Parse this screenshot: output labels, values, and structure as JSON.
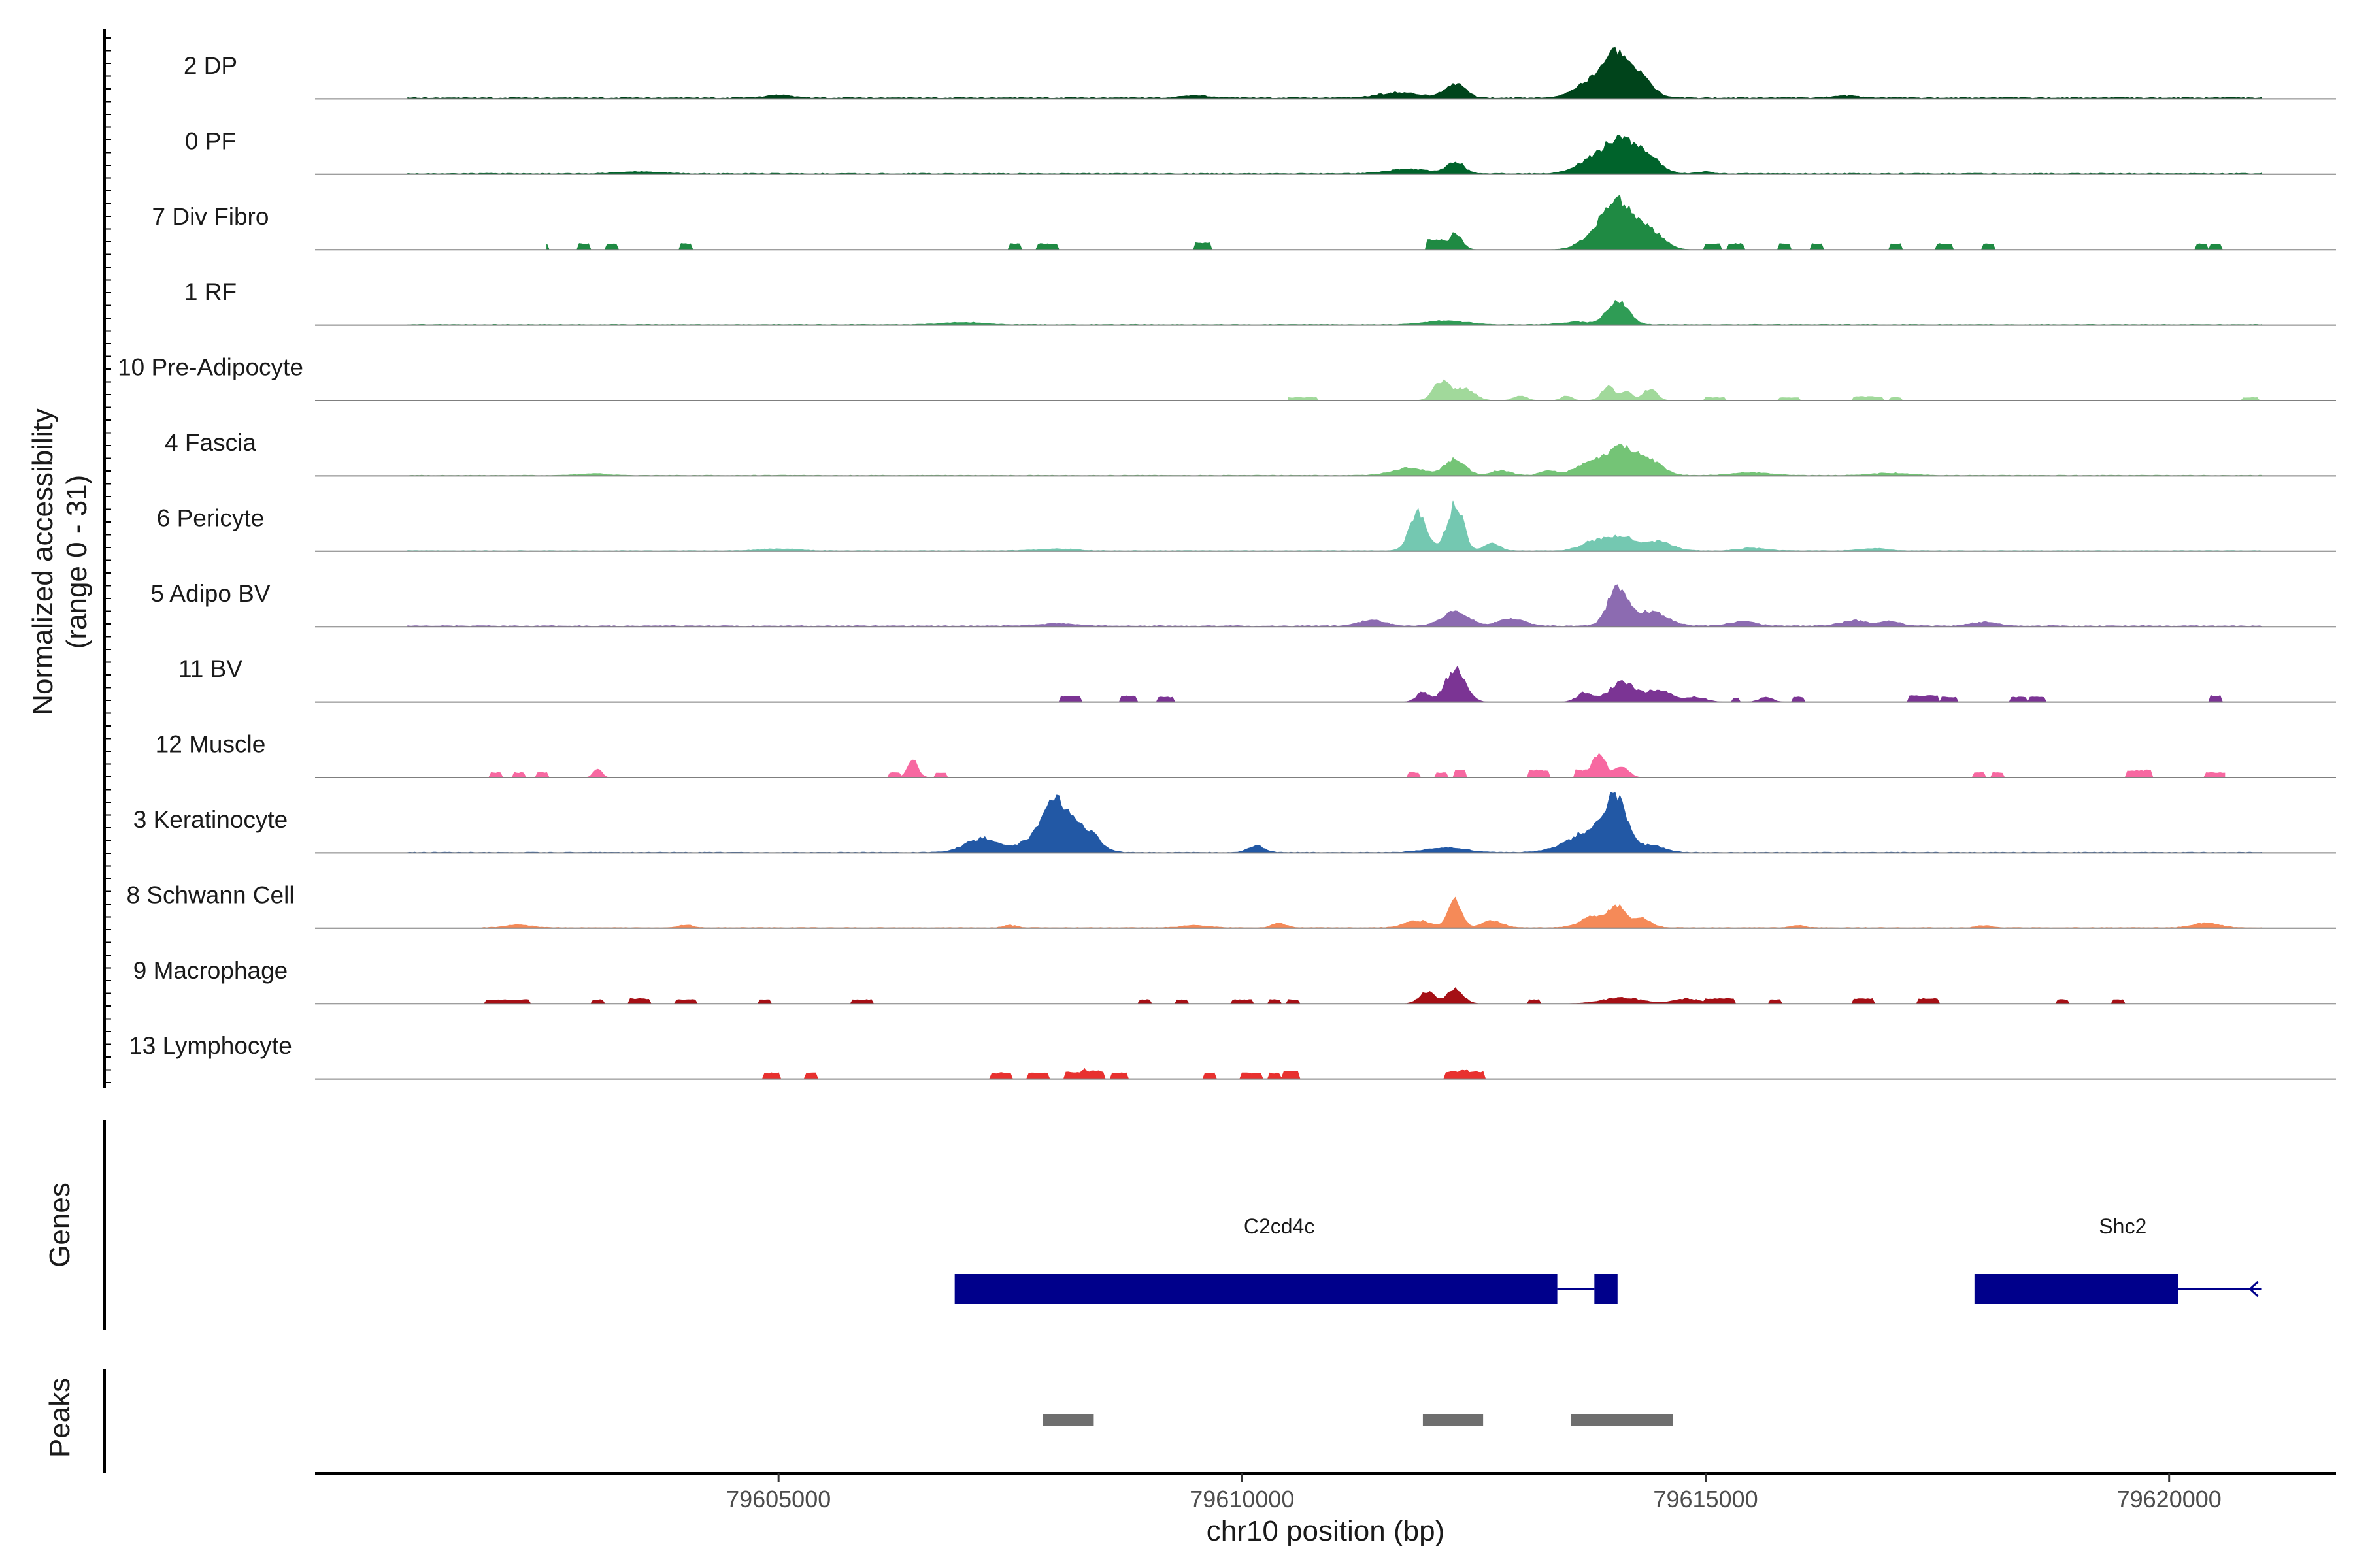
{
  "chart_data": {
    "type": "area",
    "chromosome": "chr10",
    "xlim": [
      79600000,
      79621800
    ],
    "ylabel": "Normalized accessibility\n(range 0 - 31)",
    "ylim": [
      0,
      31
    ],
    "xlabel": "chr10 position (bp)",
    "x_ticks": [
      {
        "value": 79605000,
        "label": "79605000"
      },
      {
        "value": 79610000,
        "label": "79610000"
      },
      {
        "value": 79615000,
        "label": "79615000"
      },
      {
        "value": 79620000,
        "label": "79620000"
      }
    ],
    "tracks": [
      {
        "name": "2 DP",
        "color": "#00441b",
        "baseline": 0.2,
        "x_start": 79601000,
        "x_end": 79621000,
        "peaks": [
          [
            79605000,
            0.6,
            0.2
          ],
          [
            79609500,
            0.5,
            0.2
          ],
          [
            79612300,
            3,
            0.16
          ],
          [
            79611700,
            1.2,
            0.3
          ],
          [
            79613800,
            4,
            0.25
          ],
          [
            79614050,
            8,
            0.18
          ],
          [
            79614300,
            4,
            0.18
          ],
          [
            79616500,
            0.5,
            0.2
          ]
        ]
      },
      {
        "name": "0 PF",
        "color": "#00632b",
        "baseline": 0.15,
        "x_start": 79601000,
        "x_end": 79621000,
        "peaks": [
          [
            79603500,
            0.4,
            0.3
          ],
          [
            79611800,
            1,
            0.3
          ],
          [
            79612300,
            2.5,
            0.13
          ],
          [
            79613800,
            3,
            0.25
          ],
          [
            79614100,
            7,
            0.22
          ],
          [
            79614400,
            3,
            0.18
          ],
          [
            79615000,
            0.4,
            0.1
          ]
        ]
      },
      {
        "name": "7 Div Fibro",
        "color": "#1f8a43",
        "baseline": 0,
        "x_start": 79602500,
        "x_end": 79620900,
        "blocks": [
          [
            79602300,
            79602500,
            1.2
          ],
          [
            79602850,
            79602950,
            1.2
          ],
          [
            79603150,
            79603250,
            1.2
          ],
          [
            79603950,
            79604050,
            1.2
          ],
          [
            79607500,
            79607600,
            1.2
          ],
          [
            79607800,
            79608000,
            1.2
          ],
          [
            79609500,
            79609650,
            1.4
          ],
          [
            79612000,
            79612200,
            2
          ]
        ],
        "peaks": [
          [
            79612300,
            3.5,
            0.1
          ],
          [
            79613900,
            5,
            0.25
          ],
          [
            79614100,
            7,
            0.2
          ],
          [
            79614400,
            4,
            0.2
          ]
        ],
        "blocks2": [
          [
            79615000,
            79615150,
            1.2
          ],
          [
            79615250,
            79615400,
            1.2
          ],
          [
            79615800,
            79615900,
            1.2
          ],
          [
            79616150,
            79616250,
            1.2
          ],
          [
            79617000,
            79617100,
            1.2
          ],
          [
            79617500,
            79617650,
            1.2
          ],
          [
            79618000,
            79618100,
            1.2
          ],
          [
            79620300,
            79620400,
            1.2
          ],
          [
            79620450,
            79620550,
            1.2
          ]
        ]
      },
      {
        "name": "1 RF",
        "color": "#2f9c55",
        "baseline": 0.1,
        "x_start": 79601000,
        "x_end": 79621000,
        "peaks": [
          [
            79607000,
            0.5,
            0.3
          ],
          [
            79612200,
            0.8,
            0.3
          ],
          [
            79614050,
            5,
            0.16
          ],
          [
            79613600,
            0.6,
            0.2
          ]
        ]
      },
      {
        "name": "10 Pre-Adipocyte",
        "color": "#a1d99b",
        "baseline": 0,
        "x_start": 79610500,
        "x_end": 79621000,
        "blocks": [
          [
            79610500,
            79610800,
            0.6
          ],
          [
            79615000,
            79615200,
            0.6
          ],
          [
            79615800,
            79616000,
            0.6
          ],
          [
            79616600,
            79616900,
            0.8
          ],
          [
            79617000,
            79617100,
            0.6
          ],
          [
            79620800,
            79620950,
            0.6
          ]
        ],
        "peaks": [
          [
            79612150,
            4,
            0.12
          ],
          [
            79612400,
            2.5,
            0.15
          ],
          [
            79613000,
            1,
            0.1
          ],
          [
            79613500,
            1,
            0.08
          ],
          [
            79613950,
            3,
            0.1
          ],
          [
            79614150,
            2,
            0.08
          ],
          [
            79614400,
            2.5,
            0.1
          ]
        ]
      },
      {
        "name": "4 Fascia",
        "color": "#74c476",
        "baseline": 0.1,
        "x_start": 79601000,
        "x_end": 79621000,
        "peaks": [
          [
            79603000,
            0.4,
            0.2
          ],
          [
            79611800,
            1.5,
            0.25
          ],
          [
            79612300,
            3.5,
            0.15
          ],
          [
            79612800,
            1,
            0.15
          ],
          [
            79613300,
            1,
            0.12
          ],
          [
            79613800,
            3,
            0.25
          ],
          [
            79614100,
            5,
            0.2
          ],
          [
            79614400,
            3,
            0.2
          ],
          [
            79615500,
            0.6,
            0.3
          ],
          [
            79617000,
            0.5,
            0.3
          ]
        ]
      },
      {
        "name": "6 Pericyte",
        "color": "#74c8b1",
        "baseline": 0.1,
        "x_start": 79601000,
        "x_end": 79621000,
        "peaks": [
          [
            79605000,
            0.4,
            0.3
          ],
          [
            79608000,
            0.4,
            0.3
          ],
          [
            79611900,
            8,
            0.13
          ],
          [
            79612300,
            10,
            0.12
          ],
          [
            79612700,
            1.5,
            0.12
          ],
          [
            79613800,
            2,
            0.2
          ],
          [
            79614100,
            3,
            0.2
          ],
          [
            79614500,
            2,
            0.2
          ],
          [
            79615500,
            0.6,
            0.2
          ],
          [
            79616800,
            0.5,
            0.2
          ]
        ]
      },
      {
        "name": "5 Adipo BV",
        "color": "#8c6bb1",
        "baseline": 0.15,
        "x_start": 79601000,
        "x_end": 79621000,
        "peaks": [
          [
            79608000,
            0.5,
            0.3
          ],
          [
            79611400,
            1.2,
            0.2
          ],
          [
            79612300,
            3,
            0.2
          ],
          [
            79612900,
            1.5,
            0.2
          ],
          [
            79614050,
            8,
            0.15
          ],
          [
            79614400,
            3,
            0.25
          ],
          [
            79615400,
            1,
            0.2
          ],
          [
            79616600,
            1.2,
            0.2
          ],
          [
            79617000,
            1,
            0.15
          ],
          [
            79618000,
            0.8,
            0.2
          ]
        ]
      },
      {
        "name": "11 BV",
        "color": "#7b3494",
        "baseline": 0,
        "x_start": 79608000,
        "x_end": 79620600,
        "blocks": [
          [
            79608050,
            79608250,
            1.2
          ],
          [
            79608700,
            79608850,
            1.2
          ],
          [
            79609100,
            79609250,
            1
          ],
          [
            79615300,
            79615350,
            0.8
          ],
          [
            79615950,
            79616050,
            1
          ],
          [
            79617200,
            79617500,
            1.3
          ],
          [
            79617550,
            79617700,
            1
          ],
          [
            79618300,
            79618450,
            1
          ],
          [
            79618500,
            79618650,
            1
          ],
          [
            79620450,
            79620550,
            1.3
          ]
        ],
        "peaks": [
          [
            79611950,
            2,
            0.1
          ],
          [
            79612300,
            7,
            0.15
          ],
          [
            79613700,
            2,
            0.12
          ],
          [
            79614100,
            4,
            0.2
          ],
          [
            79614500,
            2.5,
            0.2
          ],
          [
            79614900,
            1,
            0.15
          ],
          [
            79615650,
            1,
            0.1
          ]
        ]
      },
      {
        "name": "12 Muscle",
        "color": "#f768a1",
        "baseline": 0,
        "x_start": 79601800,
        "x_end": 79620600,
        "blocks": [
          [
            79601900,
            79602000,
            1
          ],
          [
            79602150,
            79602250,
            1
          ],
          [
            79602400,
            79602500,
            1
          ],
          [
            79603000,
            79603100,
            1
          ],
          [
            79606200,
            79606300,
            1
          ],
          [
            79606700,
            79606800,
            1
          ],
          [
            79611800,
            79611900,
            1
          ],
          [
            79612100,
            79612200,
            1
          ],
          [
            79612300,
            79612400,
            1.5
          ],
          [
            79613100,
            79613300,
            1.5
          ],
          [
            79613600,
            79613750,
            1.5
          ],
          [
            79617900,
            79618000,
            1
          ],
          [
            79618100,
            79618200,
            1
          ],
          [
            79619550,
            79619800,
            1.5
          ],
          [
            79620400,
            79620600,
            1
          ]
        ],
        "peaks": [
          [
            79603050,
            2,
            0.06
          ],
          [
            79606450,
            3.5,
            0.08
          ],
          [
            79613850,
            5,
            0.1
          ],
          [
            79614100,
            2.5,
            0.1
          ]
        ]
      },
      {
        "name": "3 Keratinocyte",
        "color": "#2258a5",
        "baseline": 0.1,
        "x_start": 79601000,
        "x_end": 79621000,
        "peaks": [
          [
            79607200,
            3,
            0.25
          ],
          [
            79608000,
            9,
            0.18
          ],
          [
            79608300,
            5,
            0.2
          ],
          [
            79607800,
            3,
            0.25
          ],
          [
            79610150,
            1.5,
            0.12
          ],
          [
            79612200,
            1,
            0.3
          ],
          [
            79613600,
            2,
            0.3
          ],
          [
            79614050,
            10,
            0.15
          ],
          [
            79613850,
            4,
            0.25
          ],
          [
            79614400,
            1.5,
            0.2
          ]
        ]
      },
      {
        "name": "8 Schwann Cell",
        "color": "#f58a58",
        "baseline": 0.1,
        "x_start": 79601800,
        "x_end": 79621000,
        "peaks": [
          [
            79602200,
            0.6,
            0.2
          ],
          [
            79604000,
            0.6,
            0.1
          ],
          [
            79607500,
            0.5,
            0.1
          ],
          [
            79609500,
            0.5,
            0.2
          ],
          [
            79610400,
            1,
            0.1
          ],
          [
            79611900,
            1.5,
            0.2
          ],
          [
            79612300,
            6,
            0.1
          ],
          [
            79612700,
            1.5,
            0.15
          ],
          [
            79613800,
            2.5,
            0.2
          ],
          [
            79614050,
            4,
            0.12
          ],
          [
            79614300,
            2,
            0.15
          ],
          [
            79616000,
            0.5,
            0.1
          ],
          [
            79618000,
            0.5,
            0.1
          ],
          [
            79620400,
            1,
            0.2
          ]
        ]
      },
      {
        "name": "9 Macrophage",
        "color": "#a50f15",
        "baseline": 0,
        "x_start": 79601800,
        "x_end": 79621000,
        "blocks": [
          [
            79601850,
            79602300,
            0.8
          ],
          [
            79603000,
            79603100,
            0.8
          ],
          [
            79603400,
            79603600,
            1
          ],
          [
            79603900,
            79604100,
            0.8
          ],
          [
            79604800,
            79604900,
            0.8
          ],
          [
            79605800,
            79606000,
            0.8
          ],
          [
            79608900,
            79609000,
            0.8
          ],
          [
            79609300,
            79609400,
            0.8
          ],
          [
            79609900,
            79610100,
            0.8
          ],
          [
            79610300,
            79610400,
            0.8
          ],
          [
            79610500,
            79610600,
            0.8
          ],
          [
            79613100,
            79613200,
            0.8
          ],
          [
            79615000,
            79615300,
            1
          ],
          [
            79615700,
            79615800,
            0.8
          ],
          [
            79616600,
            79616800,
            1
          ],
          [
            79617300,
            79617500,
            1
          ],
          [
            79618800,
            79618900,
            0.8
          ],
          [
            79619400,
            79619500,
            0.8
          ]
        ],
        "peaks": [
          [
            79612000,
            2.5,
            0.12
          ],
          [
            79612300,
            3,
            0.12
          ],
          [
            79614100,
            1.2,
            0.3
          ],
          [
            79614800,
            1,
            0.2
          ]
        ]
      },
      {
        "name": "13 Lymphocyte",
        "color": "#e8312f",
        "baseline": 0,
        "x_start": 79604800,
        "x_end": 79612800,
        "blocks": [
          [
            79604850,
            79605000,
            1.2
          ],
          [
            79605300,
            79605400,
            1.2
          ],
          [
            79607300,
            79607500,
            1.2
          ],
          [
            79607700,
            79607900,
            1.2
          ],
          [
            79608100,
            79608250,
            1.4
          ],
          [
            79608300,
            79608500,
            1.6
          ],
          [
            79608600,
            79608750,
            1.2
          ],
          [
            79609600,
            79609700,
            1.2
          ],
          [
            79610000,
            79610200,
            1.2
          ],
          [
            79610300,
            79610400,
            1.2
          ],
          [
            79610450,
            79610600,
            1.5
          ],
          [
            79612200,
            79612600,
            1.5
          ]
        ],
        "peaks": [
          [
            79607400,
            1.5,
            0.05
          ],
          [
            79608300,
            2,
            0.05
          ],
          [
            79610500,
            1.6,
            0.05
          ],
          [
            79612400,
            2,
            0.1
          ]
        ]
      }
    ],
    "genes_label": "Genes",
    "genes": [
      {
        "name": "C2cd4c",
        "color": "#00008b",
        "exons": [
          [
            79606900,
            79613400
          ],
          [
            79613800,
            79614050
          ]
        ],
        "intron": [
          79613400,
          79613800
        ],
        "label_x": 79610400
      },
      {
        "name": "Shc2",
        "color": "#00008b",
        "exons": [
          [
            79617900,
            79620100
          ]
        ],
        "intron": [
          79620100,
          79621000
        ],
        "label_x": 79619500
      }
    ],
    "peaks_label": "Peaks",
    "peak_regions": [
      [
        79607850,
        79608400
      ],
      [
        79611950,
        79612600
      ],
      [
        79613550,
        79614650
      ]
    ],
    "peak_color": "#6e6e6e"
  }
}
